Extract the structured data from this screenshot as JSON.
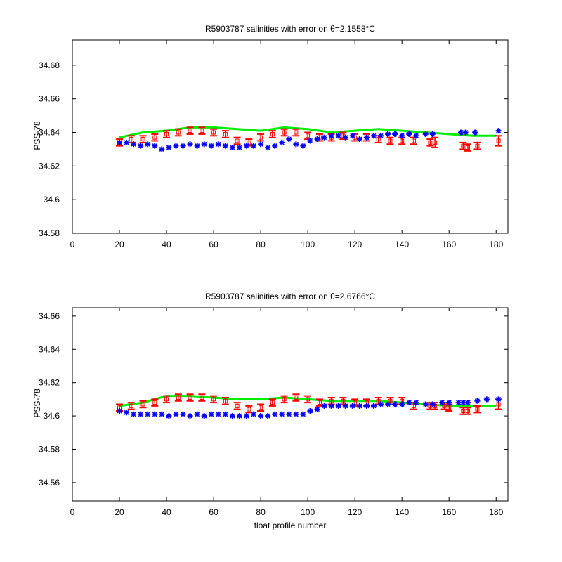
{
  "colors": {
    "mapped": "#00ee00",
    "calibrated": "#ff0000",
    "raw": "#0000ff",
    "axes": "#000000"
  },
  "chart_data": [
    {
      "type": "scatter",
      "title": "R5903787 salinities with error on θ=2.1558°C",
      "xlabel": "",
      "ylabel": "PSS-78",
      "xlim": [
        0,
        185
      ],
      "ylim": [
        34.58,
        34.695
      ],
      "xticks": [
        "0",
        "20",
        "40",
        "60",
        "80",
        "100",
        "120",
        "140",
        "160",
        "180"
      ],
      "yticks": [
        "34.58",
        "34.6",
        "34.62",
        "34.64",
        "34.66",
        "34.68"
      ],
      "grid": false,
      "series": [
        {
          "style": "line",
          "color": "green",
          "x": [
            20,
            30,
            40,
            50,
            60,
            70,
            80,
            90,
            100,
            110,
            120,
            130,
            140,
            150,
            160,
            170,
            180
          ],
          "values": [
            34.637,
            34.64,
            34.641,
            34.643,
            34.643,
            34.642,
            34.641,
            34.643,
            34.642,
            34.64,
            34.641,
            34.642,
            34.641,
            34.64,
            34.639,
            34.638,
            34.638
          ]
        },
        {
          "style": "errorbar",
          "color": "red",
          "x": [
            20,
            25,
            30,
            35,
            40,
            45,
            50,
            55,
            60,
            65,
            70,
            75,
            80,
            85,
            90,
            95,
            100,
            105,
            110,
            115,
            120,
            125,
            130,
            135,
            140,
            145,
            152,
            154,
            166,
            168,
            172,
            181
          ],
          "values": [
            34.634,
            34.636,
            34.636,
            34.637,
            34.639,
            34.64,
            34.641,
            34.641,
            34.64,
            34.639,
            34.635,
            34.634,
            34.637,
            34.639,
            34.64,
            34.64,
            34.638,
            34.637,
            34.637,
            34.638,
            34.637,
            34.637,
            34.636,
            34.635,
            34.635,
            34.635,
            34.634,
            34.634,
            34.632,
            34.631,
            34.632,
            34.635
          ],
          "error": [
            0.002,
            0.002,
            0.002,
            0.002,
            0.002,
            0.002,
            0.002,
            0.002,
            0.002,
            0.002,
            0.002,
            0.002,
            0.002,
            0.002,
            0.002,
            0.002,
            0.002,
            0.002,
            0.002,
            0.002,
            0.002,
            0.002,
            0.002,
            0.002,
            0.002,
            0.002,
            0.002,
            0.003,
            0.002,
            0.002,
            0.002,
            0.003
          ]
        },
        {
          "style": "marker",
          "color": "blue",
          "x": [
            20,
            23,
            26,
            29,
            32,
            35,
            38,
            41,
            44,
            47,
            50,
            53,
            56,
            59,
            62,
            65,
            68,
            71,
            74,
            77,
            80,
            83,
            86,
            89,
            92,
            95,
            98,
            101,
            104,
            107,
            110,
            113,
            116,
            119,
            122,
            125,
            128,
            131,
            134,
            137,
            140,
            143,
            146,
            150,
            153,
            165,
            167,
            171,
            181
          ],
          "values": [
            34.634,
            34.634,
            34.633,
            34.632,
            34.633,
            34.632,
            34.63,
            34.631,
            34.632,
            34.632,
            34.633,
            34.632,
            34.633,
            34.632,
            34.633,
            34.632,
            34.631,
            34.631,
            34.632,
            34.632,
            34.633,
            34.631,
            34.632,
            34.634,
            34.636,
            34.633,
            34.632,
            34.635,
            34.636,
            34.637,
            34.638,
            34.638,
            34.637,
            34.638,
            34.636,
            34.637,
            34.638,
            34.638,
            34.639,
            34.639,
            34.638,
            34.639,
            34.638,
            34.639,
            34.639,
            34.64,
            34.64,
            34.64,
            34.641
          ]
        }
      ]
    },
    {
      "type": "scatter",
      "title": "R5903787 salinities with error on θ=2.6766°C",
      "xlabel": "float profile number",
      "ylabel": "PSS-78",
      "xlim": [
        0,
        185
      ],
      "ylim": [
        34.549,
        34.665
      ],
      "xticks": [
        "0",
        "20",
        "40",
        "60",
        "80",
        "100",
        "120",
        "140",
        "160",
        "180"
      ],
      "yticks": [
        "34.56",
        "34.58",
        "34.6",
        "34.62",
        "34.64",
        "34.66"
      ],
      "grid": false,
      "series": [
        {
          "style": "line",
          "color": "green",
          "x": [
            20,
            30,
            40,
            50,
            60,
            70,
            80,
            90,
            100,
            110,
            120,
            130,
            140,
            150,
            160,
            170,
            180
          ],
          "values": [
            34.606,
            34.608,
            34.612,
            34.612,
            34.611,
            34.61,
            34.61,
            34.611,
            34.61,
            34.609,
            34.609,
            34.609,
            34.608,
            34.607,
            34.606,
            34.606,
            34.606
          ]
        },
        {
          "style": "errorbar",
          "color": "red",
          "x": [
            20,
            25,
            30,
            35,
            40,
            45,
            50,
            55,
            60,
            65,
            70,
            75,
            80,
            85,
            90,
            95,
            100,
            105,
            110,
            115,
            120,
            125,
            130,
            135,
            140,
            145,
            152,
            154,
            158,
            160,
            166,
            168,
            172,
            181
          ],
          "values": [
            34.605,
            34.606,
            34.607,
            34.608,
            34.61,
            34.611,
            34.611,
            34.611,
            34.61,
            34.609,
            34.606,
            34.604,
            34.605,
            34.608,
            34.61,
            34.611,
            34.61,
            34.608,
            34.609,
            34.609,
            34.608,
            34.608,
            34.609,
            34.609,
            34.609,
            34.606,
            34.606,
            34.606,
            34.606,
            34.605,
            34.603,
            34.603,
            34.604,
            34.607
          ],
          "error": [
            0.002,
            0.002,
            0.002,
            0.002,
            0.002,
            0.002,
            0.002,
            0.002,
            0.002,
            0.002,
            0.002,
            0.002,
            0.002,
            0.002,
            0.002,
            0.002,
            0.002,
            0.002,
            0.002,
            0.002,
            0.002,
            0.002,
            0.002,
            0.002,
            0.002,
            0.002,
            0.002,
            0.002,
            0.002,
            0.002,
            0.002,
            0.002,
            0.002,
            0.003
          ]
        },
        {
          "style": "marker",
          "color": "blue",
          "x": [
            20,
            23,
            26,
            29,
            32,
            35,
            38,
            41,
            44,
            47,
            50,
            53,
            56,
            59,
            62,
            65,
            68,
            71,
            74,
            77,
            80,
            83,
            86,
            89,
            92,
            95,
            98,
            101,
            104,
            107,
            110,
            113,
            116,
            119,
            122,
            125,
            128,
            131,
            134,
            137,
            140,
            143,
            146,
            150,
            153,
            157,
            160,
            164,
            166,
            168,
            172,
            176,
            181
          ],
          "values": [
            34.603,
            34.602,
            34.601,
            34.601,
            34.601,
            34.601,
            34.601,
            34.6,
            34.601,
            34.601,
            34.6,
            34.601,
            34.6,
            34.601,
            34.601,
            34.601,
            34.6,
            34.6,
            34.6,
            34.601,
            34.6,
            34.6,
            34.601,
            34.601,
            34.601,
            34.601,
            34.601,
            34.603,
            34.604,
            34.606,
            34.606,
            34.606,
            34.606,
            34.606,
            34.606,
            34.606,
            34.606,
            34.607,
            34.607,
            34.607,
            34.607,
            34.608,
            34.608,
            34.607,
            34.607,
            34.608,
            34.608,
            34.608,
            34.608,
            34.608,
            34.609,
            34.61,
            34.61
          ]
        }
      ]
    }
  ]
}
